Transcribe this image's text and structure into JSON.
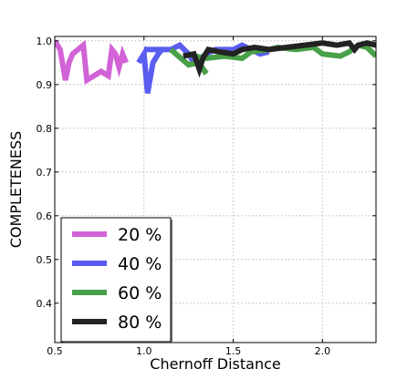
{
  "chart_data": {
    "type": "line",
    "title": "",
    "xlabel": "Chernoff Distance",
    "ylabel": "COMPLETENESS",
    "xlim": [
      0.5,
      2.3
    ],
    "ylim": [
      0.31,
      1.01
    ],
    "xticks": [
      "0.5",
      "1.0",
      "1.5",
      "2.0"
    ],
    "xtick_values": [
      0.5,
      1.0,
      1.5,
      2.0
    ],
    "yticks": [
      "0.4",
      "0.5",
      "0.6",
      "0.7",
      "0.8",
      "0.9",
      "1.0"
    ],
    "ytick_values": [
      0.4,
      0.5,
      0.6,
      0.7,
      0.8,
      0.9,
      1.0
    ],
    "grid": true,
    "legend_position": "lower-left",
    "series": [
      {
        "name": "20 %",
        "color": "#d163d6",
        "points": [
          [
            0.5,
            1.0
          ],
          [
            0.53,
            0.98
          ],
          [
            0.56,
            0.91
          ],
          [
            0.58,
            0.95
          ],
          [
            0.6,
            0.97
          ],
          [
            0.63,
            0.98
          ],
          [
            0.66,
            0.99
          ],
          [
            0.68,
            0.91
          ],
          [
            0.72,
            0.92
          ],
          [
            0.76,
            0.93
          ],
          [
            0.8,
            0.92
          ],
          [
            0.82,
            0.98
          ],
          [
            0.84,
            0.97
          ],
          [
            0.86,
            0.94
          ],
          [
            0.88,
            0.97
          ],
          [
            0.9,
            0.95
          ]
        ]
      },
      {
        "name": "40 %",
        "color": "#5a5df0",
        "points": [
          [
            0.97,
            0.95
          ],
          [
            1.0,
            0.97
          ],
          [
            1.02,
            0.88
          ],
          [
            1.05,
            0.95
          ],
          [
            1.08,
            0.97
          ],
          [
            1.1,
            0.98
          ],
          [
            1.0,
            0.98
          ],
          [
            1.15,
            0.98
          ],
          [
            1.2,
            0.99
          ],
          [
            1.25,
            0.97
          ],
          [
            1.28,
            0.95
          ],
          [
            1.35,
            0.97
          ],
          [
            1.4,
            0.98
          ],
          [
            1.5,
            0.98
          ],
          [
            1.55,
            0.99
          ],
          [
            1.6,
            0.98
          ],
          [
            1.65,
            0.97
          ],
          [
            1.7,
            0.975
          ]
        ]
      },
      {
        "name": "60 %",
        "color": "#48a048",
        "points": [
          [
            1.15,
            0.98
          ],
          [
            1.25,
            0.945
          ],
          [
            1.3,
            0.95
          ],
          [
            1.35,
            0.925
          ],
          [
            1.28,
            0.965
          ],
          [
            1.35,
            0.96
          ],
          [
            1.45,
            0.965
          ],
          [
            1.55,
            0.96
          ],
          [
            1.6,
            0.975
          ],
          [
            1.7,
            0.98
          ],
          [
            1.75,
            0.985
          ],
          [
            1.85,
            0.98
          ],
          [
            1.95,
            0.985
          ],
          [
            2.0,
            0.97
          ],
          [
            2.1,
            0.965
          ],
          [
            2.15,
            0.975
          ],
          [
            2.2,
            0.99
          ],
          [
            2.25,
            0.985
          ],
          [
            2.3,
            0.965
          ]
        ]
      },
      {
        "name": "80 %",
        "color": "#222222",
        "points": [
          [
            1.22,
            0.965
          ],
          [
            1.28,
            0.97
          ],
          [
            1.31,
            0.935
          ],
          [
            1.33,
            0.96
          ],
          [
            1.36,
            0.98
          ],
          [
            1.42,
            0.975
          ],
          [
            1.5,
            0.97
          ],
          [
            1.55,
            0.98
          ],
          [
            1.62,
            0.985
          ],
          [
            1.7,
            0.98
          ],
          [
            1.8,
            0.985
          ],
          [
            1.9,
            0.99
          ],
          [
            2.0,
            0.995
          ],
          [
            2.08,
            0.99
          ],
          [
            2.15,
            0.995
          ],
          [
            2.18,
            0.98
          ],
          [
            2.2,
            0.99
          ],
          [
            2.25,
            0.995
          ],
          [
            2.3,
            0.99
          ]
        ]
      }
    ]
  }
}
